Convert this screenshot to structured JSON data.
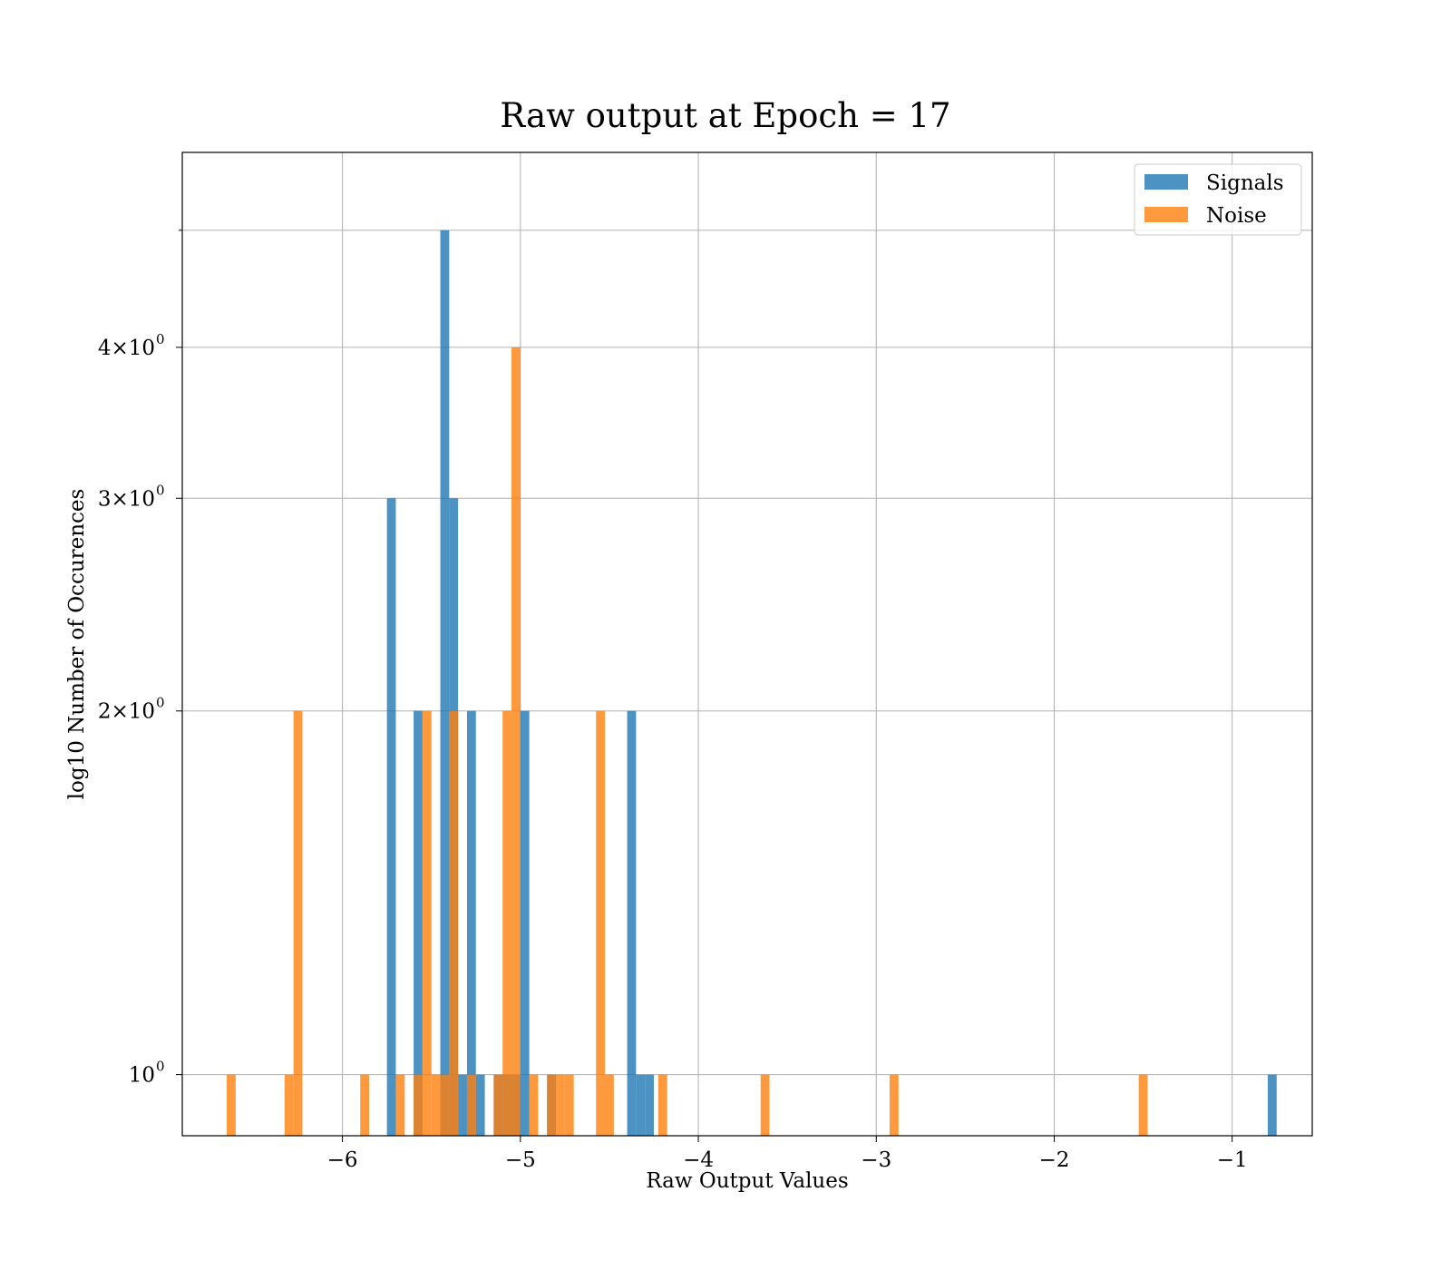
{
  "chart_data": {
    "type": "bar",
    "title": "Raw output at Epoch = 17",
    "xlabel": "Raw Output Values",
    "ylabel": "log10 Number of Occurences",
    "xlim": [
      -6.9,
      -0.55
    ],
    "ylim": [
      0.89,
      5.8
    ],
    "yscale": "log",
    "grid": true,
    "legend_position": "top-right",
    "bin_width": 0.05,
    "x_ticks": [
      {
        "value": -6,
        "label": "−6"
      },
      {
        "value": -5,
        "label": "−5"
      },
      {
        "value": -4,
        "label": "−4"
      },
      {
        "value": -3,
        "label": "−3"
      },
      {
        "value": -2,
        "label": "−2"
      },
      {
        "value": -1,
        "label": "−1"
      }
    ],
    "y_ticks": [
      {
        "value": 1,
        "base": "10",
        "exp": "0"
      },
      {
        "value": 2,
        "base": "2×10",
        "exp": "0"
      },
      {
        "value": 3,
        "base": "3×10",
        "exp": "0"
      },
      {
        "value": 4,
        "base": "4×10",
        "exp": "0"
      }
    ],
    "y_extra_gridlines": [
      5
    ],
    "series": [
      {
        "name": "Signals",
        "color": "#1f77b4",
        "bins": [
          {
            "x": -5.725,
            "count": 3
          },
          {
            "x": -5.575,
            "count": 2
          },
          {
            "x": -5.425,
            "count": 5
          },
          {
            "x": -5.375,
            "count": 3
          },
          {
            "x": -5.325,
            "count": 1
          },
          {
            "x": -5.275,
            "count": 2
          },
          {
            "x": -5.225,
            "count": 1
          },
          {
            "x": -5.125,
            "count": 1
          },
          {
            "x": -5.075,
            "count": 1
          },
          {
            "x": -5.025,
            "count": 1
          },
          {
            "x": -4.975,
            "count": 2
          },
          {
            "x": -4.825,
            "count": 1
          },
          {
            "x": -4.375,
            "count": 2
          },
          {
            "x": -4.325,
            "count": 1
          },
          {
            "x": -4.275,
            "count": 1
          },
          {
            "x": -0.775,
            "count": 1
          }
        ]
      },
      {
        "name": "Noise",
        "color": "#ff7f0e",
        "bins": [
          {
            "x": -6.625,
            "count": 1
          },
          {
            "x": -6.3,
            "count": 1
          },
          {
            "x": -6.25,
            "count": 2
          },
          {
            "x": -5.875,
            "count": 1
          },
          {
            "x": -5.675,
            "count": 1
          },
          {
            "x": -5.575,
            "count": 1
          },
          {
            "x": -5.525,
            "count": 2
          },
          {
            "x": -5.475,
            "count": 1
          },
          {
            "x": -5.425,
            "count": 1
          },
          {
            "x": -5.375,
            "count": 2
          },
          {
            "x": -5.275,
            "count": 1
          },
          {
            "x": -5.125,
            "count": 1
          },
          {
            "x": -5.075,
            "count": 2
          },
          {
            "x": -5.025,
            "count": 4
          },
          {
            "x": -4.925,
            "count": 1
          },
          {
            "x": -4.825,
            "count": 1
          },
          {
            "x": -4.775,
            "count": 1
          },
          {
            "x": -4.725,
            "count": 1
          },
          {
            "x": -4.55,
            "count": 2
          },
          {
            "x": -4.5,
            "count": 1
          },
          {
            "x": -4.2,
            "count": 1
          },
          {
            "x": -3.625,
            "count": 1
          },
          {
            "x": -2.9,
            "count": 1
          },
          {
            "x": -1.5,
            "count": 1
          }
        ]
      }
    ]
  }
}
